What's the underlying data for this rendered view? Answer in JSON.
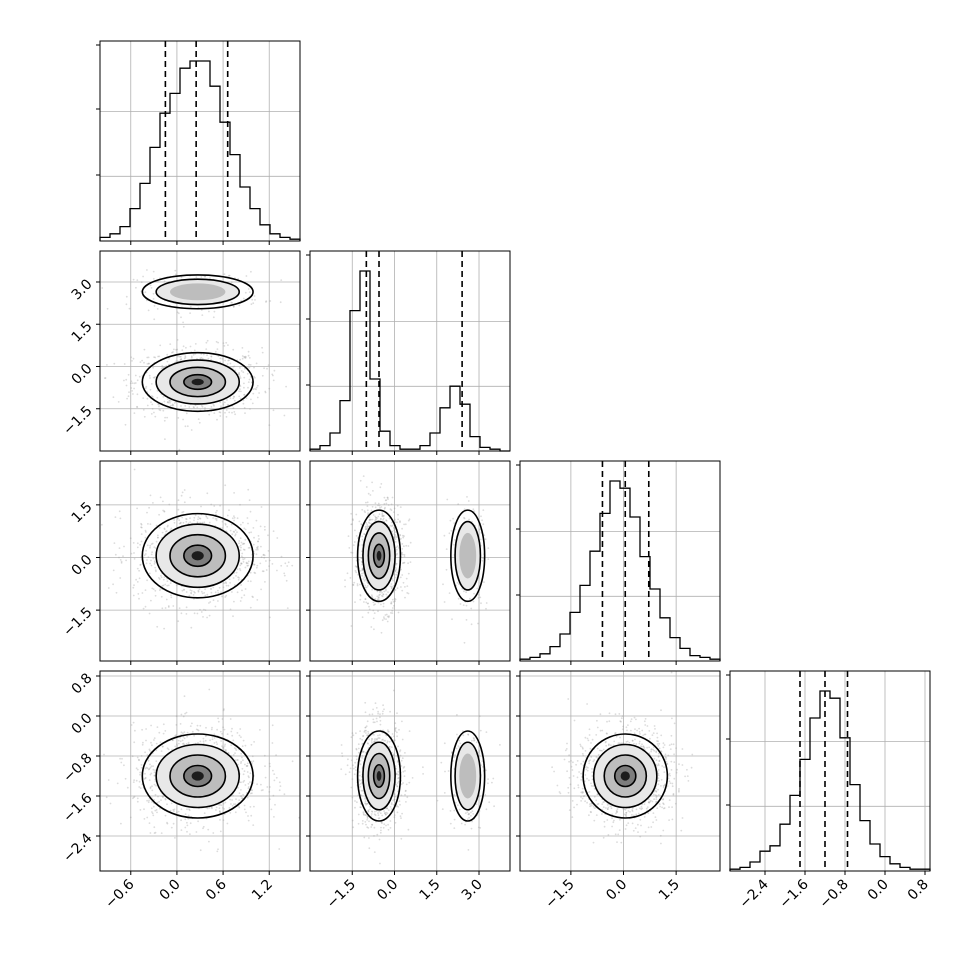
{
  "chart_data": {
    "type": "corner",
    "n_params": 4,
    "grid": true,
    "params": [
      {
        "lim": [
          -1.0,
          1.6
        ],
        "ticks": [
          -0.6,
          0.0,
          0.6,
          1.2
        ],
        "tick_labels": [
          "−0.6",
          "0.0",
          "0.6",
          "1.2"
        ]
      },
      {
        "lim": [
          -3.0,
          4.1
        ],
        "ticks": [
          -1.5,
          0.0,
          1.5,
          3.0
        ],
        "tick_labels": [
          "−1.5",
          "0.0",
          "1.5",
          "3.0"
        ]
      },
      {
        "lim": [
          -2.95,
          2.75
        ],
        "ticks": [
          -1.5,
          0.0,
          1.5
        ],
        "tick_labels": [
          "−1.5",
          "0.0",
          "1.5"
        ]
      },
      {
        "lim": [
          -3.1,
          0.9
        ],
        "ticks": [
          -2.4,
          -1.6,
          -0.8,
          0.0,
          0.8
        ],
        "tick_labels": [
          "−2.4",
          "−1.6",
          "−0.8",
          "0.0",
          "0.8"
        ]
      }
    ],
    "histograms": [
      {
        "param": 0,
        "quantiles": [
          -0.15,
          0.25,
          0.66
        ],
        "counts": [
          2,
          4,
          8,
          18,
          32,
          52,
          71,
          82,
          96,
          100,
          100,
          86,
          66,
          48,
          30,
          18,
          9,
          4,
          2,
          1
        ]
      },
      {
        "param": 1,
        "quantiles": [
          -1.0,
          -0.55,
          2.4
        ],
        "counts": [
          1,
          3,
          10,
          28,
          78,
          100,
          40,
          11,
          3,
          1,
          1,
          3,
          10,
          24,
          36,
          26,
          8,
          2,
          1,
          0
        ]
      },
      {
        "param": 2,
        "quantiles": [
          -0.6,
          0.05,
          0.72
        ],
        "counts": [
          1,
          2,
          4,
          8,
          15,
          27,
          42,
          61,
          82,
          100,
          96,
          80,
          58,
          40,
          24,
          13,
          7,
          3,
          2,
          1
        ]
      },
      {
        "param": 3,
        "quantiles": [
          -1.7,
          -1.2,
          -0.75
        ],
        "counts": [
          1,
          2,
          5,
          11,
          14,
          26,
          42,
          62,
          85,
          100,
          96,
          74,
          48,
          28,
          15,
          8,
          4,
          2,
          1,
          1
        ]
      }
    ],
    "densities": [
      {
        "x": 0,
        "y": 1,
        "modes": [
          {
            "mx": 0.27,
            "my": -0.55,
            "sx": 0.36,
            "sy": 0.52,
            "w": 0.8
          },
          {
            "mx": 0.27,
            "my": 2.65,
            "sx": 0.36,
            "sy": 0.3,
            "w": 0.2
          }
        ]
      },
      {
        "x": 0,
        "y": 2,
        "modes": [
          {
            "mx": 0.27,
            "my": 0.05,
            "sx": 0.36,
            "sy": 0.6,
            "w": 1.0
          }
        ]
      },
      {
        "x": 0,
        "y": 3,
        "modes": [
          {
            "mx": 0.27,
            "my": -1.2,
            "sx": 0.36,
            "sy": 0.42,
            "w": 1.0
          }
        ]
      },
      {
        "x": 1,
        "y": 2,
        "modes": [
          {
            "mx": -0.55,
            "my": 0.05,
            "sx": 0.38,
            "sy": 0.65,
            "w": 0.8
          },
          {
            "mx": 2.6,
            "my": 0.05,
            "sx": 0.3,
            "sy": 0.65,
            "w": 0.2
          }
        ]
      },
      {
        "x": 1,
        "y": 3,
        "modes": [
          {
            "mx": -0.55,
            "my": -1.2,
            "sx": 0.38,
            "sy": 0.45,
            "w": 0.8
          },
          {
            "mx": 2.6,
            "my": -1.2,
            "sx": 0.3,
            "sy": 0.45,
            "w": 0.2
          }
        ]
      },
      {
        "x": 2,
        "y": 3,
        "modes": [
          {
            "mx": 0.05,
            "my": -1.2,
            "sx": 0.6,
            "sy": 0.42,
            "w": 1.0
          }
        ]
      }
    ]
  }
}
